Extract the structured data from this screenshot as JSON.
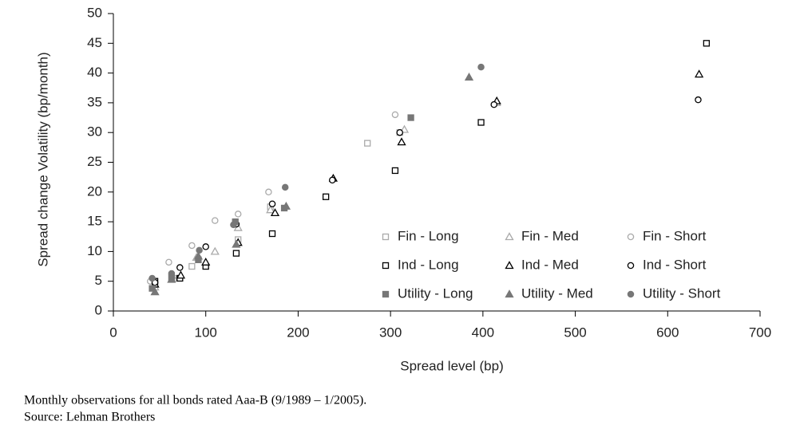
{
  "chart_data": {
    "type": "scatter",
    "xlabel": "Spread level (bp)",
    "ylabel": "Spread change Volatility (bp/month)",
    "xlim": [
      0,
      700
    ],
    "xticks": [
      0,
      100,
      200,
      300,
      400,
      500,
      600,
      700
    ],
    "ylim": [
      0,
      50
    ],
    "yticks": [
      0,
      5,
      10,
      15,
      20,
      25,
      30,
      35,
      40,
      45,
      50
    ],
    "legend": "inside-lower-right",
    "footnotes": [
      "Monthly observations for all bonds rated Aaa-B (9/1989 – 1/2005).",
      "Source: Lehman Brothers"
    ],
    "series": [
      {
        "name": "Fin - Long",
        "color": "#aaaaaa",
        "marker": "square",
        "filled": false,
        "x": [
          45,
          65,
          85,
          135,
          170,
          275,
          310
        ],
        "values": [
          4.5,
          5.5,
          7.5,
          12,
          17.5,
          28.2,
          30
        ]
      },
      {
        "name": "Fin - Med",
        "color": "#aaaaaa",
        "marker": "triangle",
        "filled": false,
        "x": [
          45,
          65,
          90,
          110,
          135,
          170,
          315,
          415
        ],
        "values": [
          4,
          5.5,
          9,
          10,
          14,
          17,
          30.5,
          35
        ]
      },
      {
        "name": "Fin - Short",
        "color": "#aaaaaa",
        "marker": "circle",
        "filled": false,
        "x": [
          40,
          60,
          85,
          110,
          135,
          168,
          305
        ],
        "values": [
          5,
          8.2,
          11,
          15.2,
          16.3,
          20,
          33
        ]
      },
      {
        "name": "Ind - Long",
        "color": "#000000",
        "marker": "square",
        "filled": false,
        "x": [
          45,
          72,
          100,
          133,
          172,
          230,
          305,
          398,
          642
        ],
        "values": [
          5,
          5.5,
          7.5,
          9.7,
          13,
          19.2,
          23.6,
          31.7,
          45
        ]
      },
      {
        "name": "Ind - Med",
        "color": "#000000",
        "marker": "triangle",
        "filled": false,
        "x": [
          45,
          73,
          100,
          135,
          175,
          238,
          312,
          415,
          634
        ],
        "values": [
          4.5,
          6,
          8.2,
          11.5,
          16.5,
          22.3,
          28.4,
          35.3,
          39.8
        ]
      },
      {
        "name": "Ind - Short",
        "color": "#000000",
        "marker": "circle",
        "filled": false,
        "x": [
          45,
          72,
          100,
          133,
          172,
          237,
          310,
          412,
          633
        ],
        "values": [
          4.8,
          7.3,
          10.8,
          14.6,
          18,
          22,
          30,
          34.7,
          35.5
        ]
      },
      {
        "name": "Utility - Long",
        "color": "#777777",
        "marker": "square",
        "filled": true,
        "x": [
          42,
          63,
          92,
          132,
          185,
          322
        ],
        "values": [
          3.8,
          5.6,
          8.6,
          15,
          17.3,
          32.5
        ]
      },
      {
        "name": "Utility - Med",
        "color": "#777777",
        "marker": "triangle",
        "filled": true,
        "x": [
          45,
          63,
          92,
          133,
          187,
          385
        ],
        "values": [
          3.2,
          5.3,
          9.2,
          11.2,
          17.6,
          39.3
        ]
      },
      {
        "name": "Utility - Short",
        "color": "#777777",
        "marker": "circle",
        "filled": true,
        "x": [
          42,
          63,
          93,
          130,
          186,
          398
        ],
        "values": [
          5.5,
          6.3,
          10.2,
          14.5,
          20.8,
          41
        ]
      }
    ]
  }
}
